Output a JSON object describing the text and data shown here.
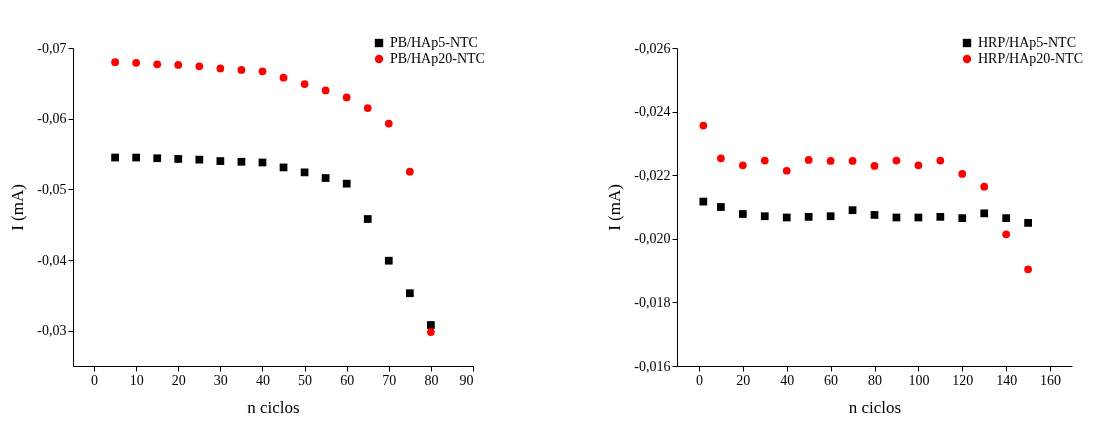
{
  "chart_data": [
    {
      "type": "scatter",
      "xlabel": "n ciclos",
      "ylabel": "I (mA)",
      "xlim": [
        -5,
        90
      ],
      "xticks": [
        0,
        10,
        20,
        30,
        40,
        50,
        60,
        70,
        80,
        90
      ],
      "ylim": [
        -0.025,
        -0.07
      ],
      "yticks": [
        {
          "value": -0.07,
          "label": "-0,07"
        },
        {
          "value": -0.06,
          "label": "-0,06"
        },
        {
          "value": -0.05,
          "label": "-0,05"
        },
        {
          "value": -0.04,
          "label": "-0,04"
        },
        {
          "value": -0.03,
          "label": "-0,03"
        }
      ],
      "grid": false,
      "legend": "top right",
      "x": [
        5,
        10,
        15,
        20,
        25,
        30,
        35,
        40,
        45,
        50,
        55,
        60,
        65,
        70,
        75,
        80
      ],
      "series": [
        {
          "name": "PB/HAp5-NTC",
          "color": "#000000",
          "marker": "square",
          "values": [
            -0.0545,
            -0.0545,
            -0.0544,
            -0.0543,
            -0.0542,
            -0.054,
            -0.0539,
            -0.0538,
            -0.0531,
            -0.0524,
            -0.0516,
            -0.0508,
            -0.0458,
            -0.0399,
            -0.0353,
            -0.0308
          ]
        },
        {
          "name": "PB/HAp20-NTC",
          "color": "#ff0000",
          "marker": "circle",
          "values": [
            -0.068,
            -0.0679,
            -0.0677,
            -0.0676,
            -0.0674,
            -0.0671,
            -0.0669,
            -0.0667,
            -0.0658,
            -0.0649,
            -0.064,
            -0.063,
            -0.0615,
            -0.0593,
            -0.0525,
            -0.0298
          ]
        }
      ]
    },
    {
      "type": "scatter",
      "xlabel": "n ciclos",
      "ylabel": "I (mA)",
      "xlim": [
        -10,
        170
      ],
      "xticks": [
        0,
        20,
        40,
        60,
        80,
        100,
        120,
        140,
        160
      ],
      "ylim": [
        -0.016,
        -0.026
      ],
      "yticks": [
        {
          "value": -0.026,
          "label": "-0,026"
        },
        {
          "value": -0.024,
          "label": "-0,024"
        },
        {
          "value": -0.022,
          "label": "-0,022"
        },
        {
          "value": -0.02,
          "label": "-0,020"
        },
        {
          "value": -0.018,
          "label": "-0,018"
        },
        {
          "value": -0.016,
          "label": "-0,016"
        }
      ],
      "grid": false,
      "legend": "top right",
      "x": [
        2,
        10,
        20,
        30,
        40,
        50,
        60,
        70,
        80,
        90,
        100,
        110,
        120,
        130,
        140,
        150
      ],
      "series": [
        {
          "name": "HRP/HAp5-NTC",
          "color": "#000000",
          "marker": "square",
          "values": [
            -0.02117,
            -0.021,
            -0.02078,
            -0.02071,
            -0.02067,
            -0.02069,
            -0.02071,
            -0.0209,
            -0.02075,
            -0.02067,
            -0.02067,
            -0.02069,
            -0.02065,
            -0.0208,
            -0.02065,
            -0.0205
          ]
        },
        {
          "name": "HRP/HAp20-NTC",
          "color": "#ff0000",
          "marker": "circle",
          "values": [
            -0.02356,
            -0.02253,
            -0.02231,
            -0.02246,
            -0.02214,
            -0.02248,
            -0.02245,
            -0.02245,
            -0.02229,
            -0.02246,
            -0.02231,
            -0.02246,
            -0.02204,
            -0.02164,
            -0.02014,
            -0.01904
          ]
        }
      ]
    }
  ]
}
